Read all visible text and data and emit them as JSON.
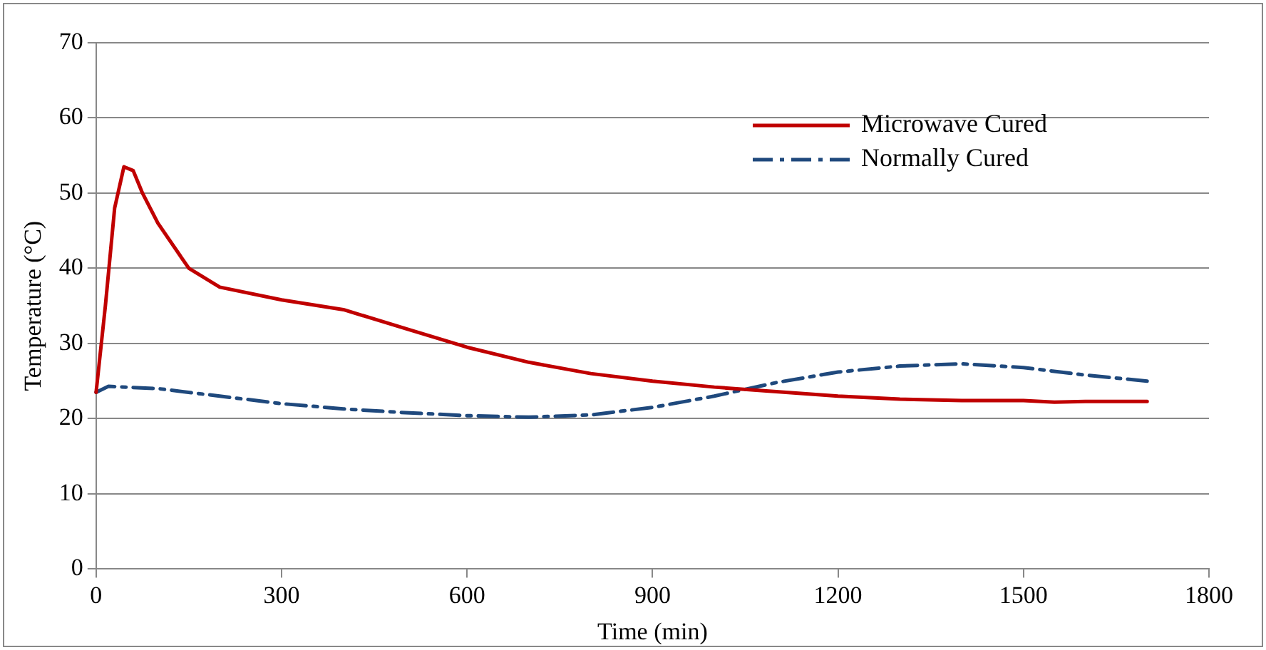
{
  "chart_data": {
    "type": "line",
    "xlabel": "Time (min)",
    "ylabel": "Temperature (°C)",
    "xlim": [
      0,
      1800
    ],
    "xticks": [
      0,
      300,
      600,
      900,
      1200,
      1500,
      1800
    ],
    "ylim": [
      0,
      70
    ],
    "yticks": [
      0,
      10,
      20,
      30,
      40,
      50,
      60,
      70
    ],
    "grid": "y",
    "legend": "top right",
    "marker": "none",
    "series": [
      {
        "name": "Microwave Cured",
        "color": "#c00000",
        "line_style": "solid",
        "x": [
          0,
          15,
          30,
          45,
          60,
          75,
          100,
          150,
          200,
          300,
          400,
          500,
          600,
          700,
          800,
          900,
          1000,
          1100,
          1200,
          1300,
          1400,
          1500,
          1550,
          1600,
          1700
        ],
        "values": [
          23.5,
          35,
          48,
          53.5,
          53,
          50,
          46,
          40,
          37.5,
          35.8,
          34.5,
          32,
          29.5,
          27.5,
          26,
          25,
          24.2,
          23.6,
          23,
          22.6,
          22.4,
          22.4,
          22.2,
          22.3,
          22.3
        ]
      },
      {
        "name": "Normally Cured",
        "color": "#1f497d",
        "line_style": "dashed",
        "x": [
          0,
          20,
          100,
          200,
          300,
          400,
          500,
          600,
          700,
          800,
          900,
          1000,
          1100,
          1200,
          1300,
          1400,
          1500,
          1600,
          1700
        ],
        "values": [
          23.5,
          24.3,
          24,
          23,
          22,
          21.3,
          20.8,
          20.4,
          20.2,
          20.5,
          21.5,
          23,
          24.8,
          26.2,
          27,
          27.3,
          26.8,
          25.8,
          25
        ]
      }
    ]
  }
}
